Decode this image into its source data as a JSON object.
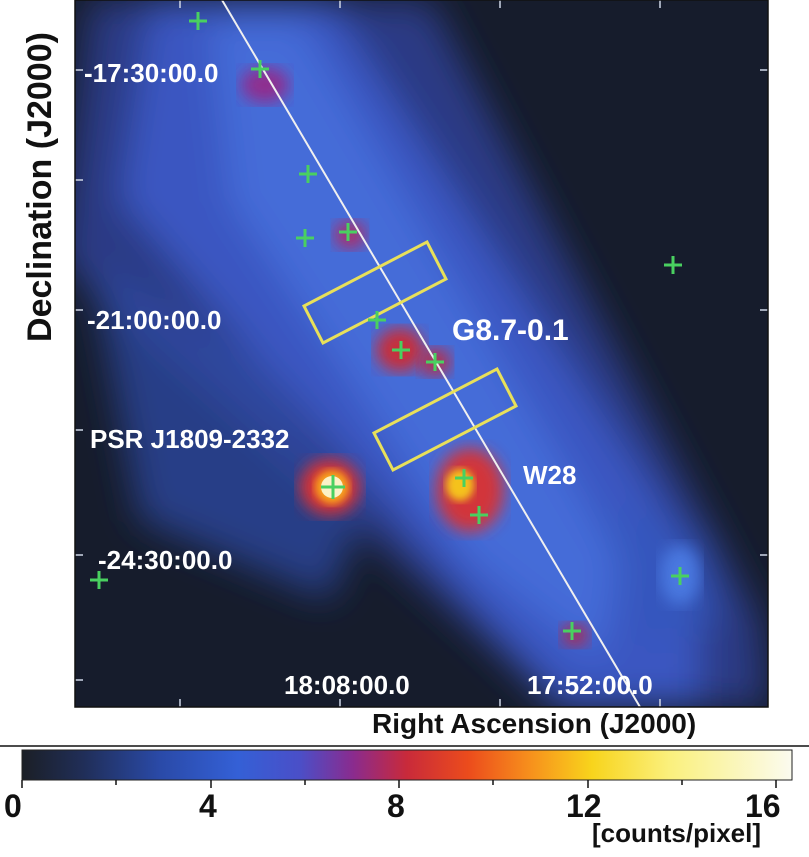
{
  "figure": {
    "y_axis_label": "Declination (J2000)",
    "x_axis_label": "Right Ascension (J2000)",
    "dec_ticks": [
      "-17:30:00.0",
      "-21:00:00.0",
      "-24:30:00.0"
    ],
    "ra_ticks": [
      "18:08:00.0",
      "17:52:00.0"
    ],
    "sources": {
      "g87": "G8.7-0.1",
      "psr": "PSR J1809-2332",
      "w28": "W28"
    }
  },
  "colorbar": {
    "ticks": [
      "0",
      "4",
      "8",
      "12",
      "16"
    ],
    "unit": "[counts/pixel]",
    "range": [
      0,
      17
    ]
  },
  "colors": {
    "background": "#141a2a",
    "galactic_band": "#3c5ac8",
    "region_box": "#e8e05a",
    "marker": "#49d060",
    "plane_line": "#f0f0f0"
  }
}
